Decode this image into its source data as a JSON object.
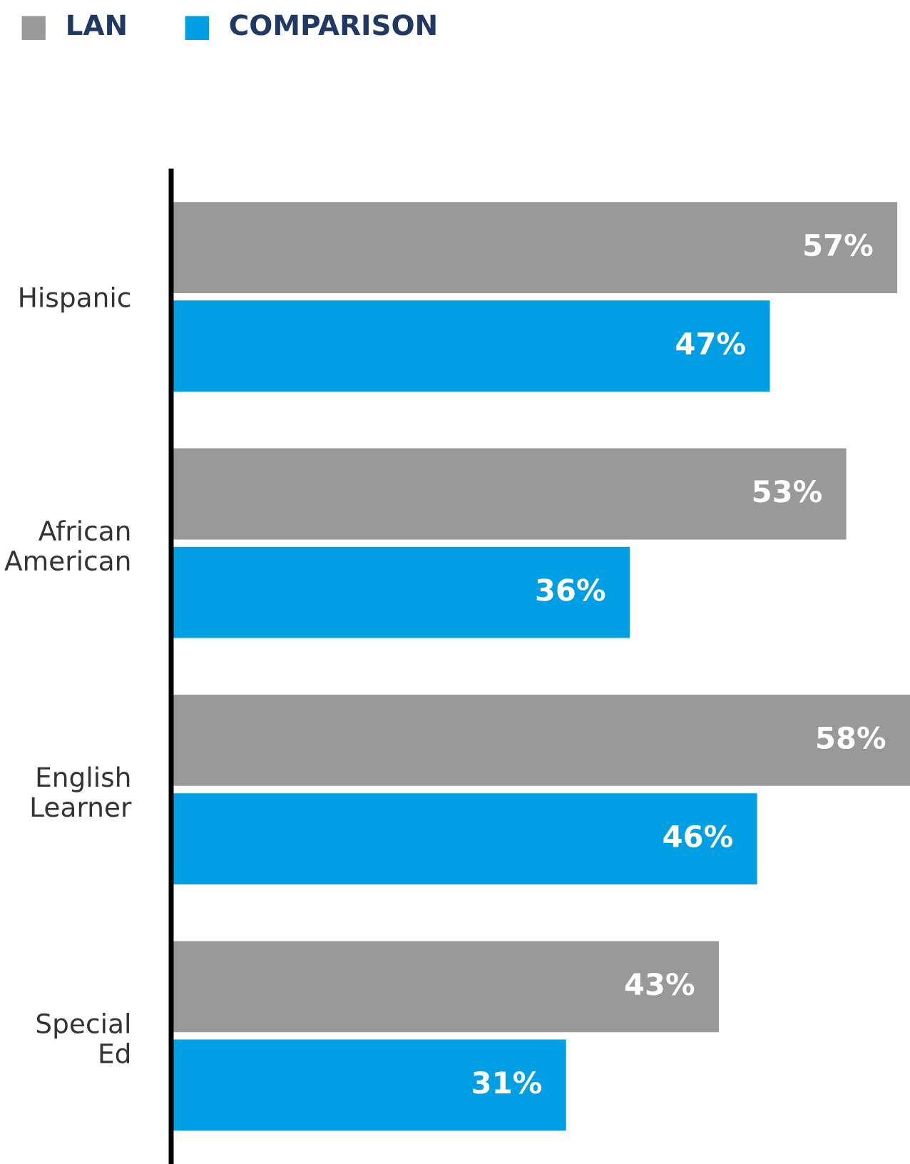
{
  "chart_data": {
    "type": "bar",
    "orientation": "horizontal",
    "categories": [
      "Hispanic",
      "African\nAmerican",
      "English\nLearner",
      "Special\nEd"
    ],
    "xlim": [
      0,
      58
    ],
    "tick_labels": "y",
    "legend": "top left",
    "grid": false,
    "series": [
      {
        "name": "LAN",
        "color": "#999999",
        "values": [
          57,
          53,
          58,
          43
        ],
        "value_labels": [
          "57%",
          "53%",
          "58%",
          "43%"
        ]
      },
      {
        "name": "COMPARISON",
        "color": "#009fe3",
        "values": [
          47,
          36,
          46,
          31
        ],
        "value_labels": [
          "47%",
          "36%",
          "46%",
          "31%"
        ]
      }
    ]
  }
}
